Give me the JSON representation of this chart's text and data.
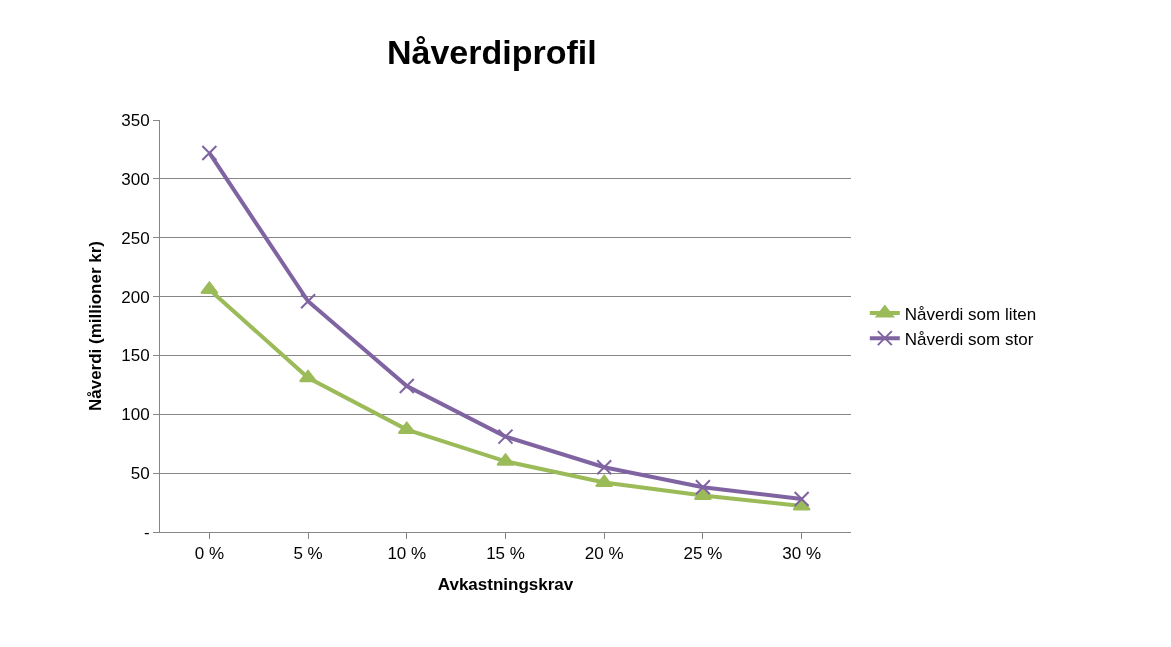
{
  "chart_data": {
    "type": "line",
    "title": "Nåverdiprofil",
    "xlabel": "Avkastningskrav",
    "ylabel": "Nåverdi (millioner kr)",
    "categories": [
      "0 %",
      "5 %",
      "10 %",
      "15 %",
      "20 %",
      "25 %",
      "30 %"
    ],
    "series": [
      {
        "name": "Nåverdi som liten",
        "color": "#9bbb59",
        "marker": "triangle",
        "values": [
          206,
          131,
          87,
          60,
          42,
          31,
          22
        ]
      },
      {
        "name": "Nåverdi som stor",
        "color": "#8064a2",
        "marker": "cross",
        "values": [
          322,
          196,
          124,
          81,
          55,
          38,
          28
        ]
      }
    ],
    "ylim": [
      0,
      350
    ],
    "yticks": [
      {
        "value": 0,
        "label": "-"
      },
      50,
      100,
      150,
      200,
      250,
      300,
      350
    ],
    "grid": "y",
    "legend": "right",
    "line_style": "solid"
  }
}
